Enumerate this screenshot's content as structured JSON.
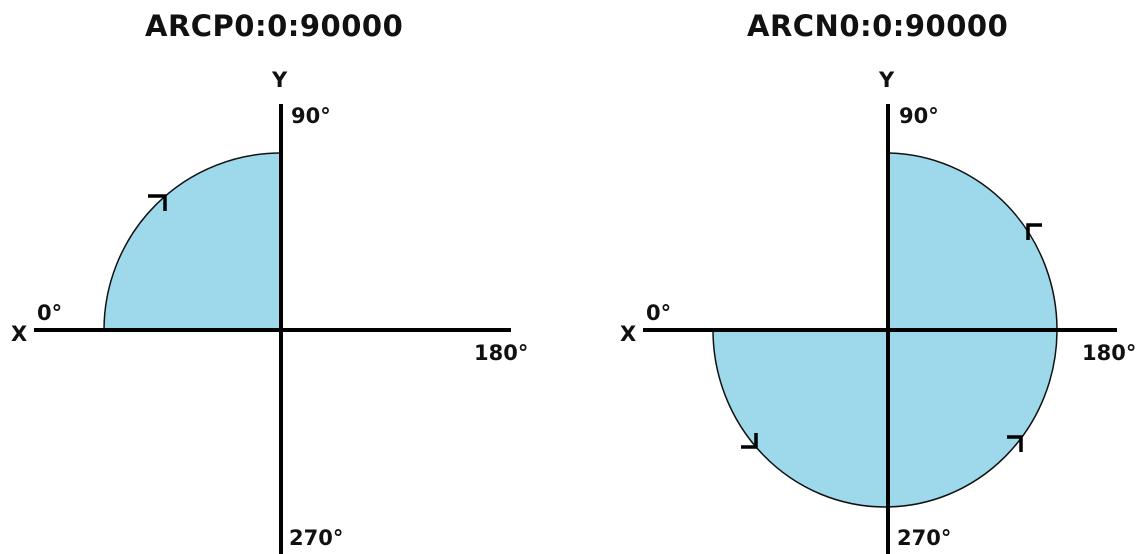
{
  "diagrams": [
    {
      "title": "ARCP0:0:90000",
      "x_axis_label": "X",
      "y_axis_label": "Y",
      "angle_labels": {
        "deg_0": "0°",
        "deg_90": "90°",
        "deg_180": "180°",
        "deg_270": "270°"
      },
      "arc": {
        "start_angle_deg": 0,
        "sweep_deg": 90,
        "direction": "counterclockwise"
      },
      "fill_color": "#9dd9ea"
    },
    {
      "title": "ARCN0:0:90000",
      "x_axis_label": "X",
      "y_axis_label": "Y",
      "angle_labels": {
        "deg_0": "0°",
        "deg_90": "90°",
        "deg_180": "180°",
        "deg_270": "270°"
      },
      "arc": {
        "start_angle_deg": 0,
        "sweep_deg": 270,
        "direction": "clockwise"
      },
      "fill_color": "#9dd9ea"
    }
  ]
}
